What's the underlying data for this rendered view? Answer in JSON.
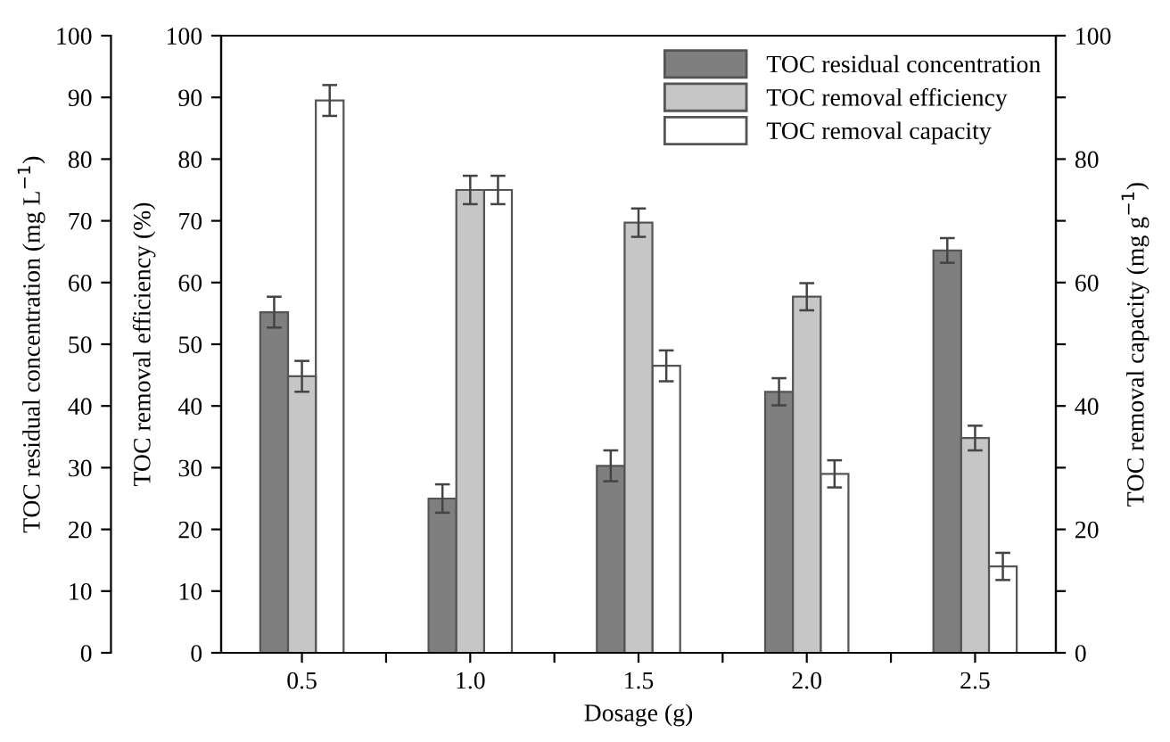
{
  "chart_data": {
    "type": "bar",
    "xlabel": "Dosage (g)",
    "ylabel": "TOC removal efficiency (%)",
    "y2label": "TOC removal capacity (mg g$^{−1}$)",
    "y3label": "TOC residual concentration (mg L$^{−1}$)",
    "x": [
      0.5,
      1.0,
      1.5,
      2.0,
      2.5
    ],
    "xlim": [
      0.26,
      2.74
    ],
    "xticks": [
      {
        "value": 0.5,
        "label": "0.5"
      },
      {
        "value": 0.75,
        "label": null
      },
      {
        "value": 1.0,
        "label": "1.0"
      },
      {
        "value": 1.25,
        "label": null
      },
      {
        "value": 1.5,
        "label": "1.5"
      },
      {
        "value": 1.75,
        "label": null
      },
      {
        "value": 2.0,
        "label": "2.0"
      },
      {
        "value": 2.25,
        "label": null
      },
      {
        "value": 2.5,
        "label": "2.5"
      }
    ],
    "ylim": [
      0,
      100
    ],
    "yticks": [
      0,
      10,
      20,
      30,
      40,
      50,
      60,
      70,
      80,
      90,
      100
    ],
    "y3lim": [
      0,
      100
    ],
    "y3ticks": [
      0,
      10,
      20,
      30,
      40,
      50,
      60,
      70,
      80,
      90,
      100
    ],
    "y2lim": [
      0,
      100
    ],
    "y2ticks": [
      0,
      {
        "value": 10,
        "label": null
      },
      20,
      {
        "value": 30,
        "label": null
      },
      40,
      {
        "value": 50,
        "label": null
      },
      60,
      {
        "value": 70,
        "label": null
      },
      80,
      {
        "value": 90,
        "label": null
      },
      100
    ],
    "series": [
      {
        "name": "TOC residual concentration",
        "color": "#7f7f7f",
        "axis": "y3",
        "values": [
          55.2,
          25.0,
          30.3,
          42.3,
          65.2
        ],
        "errors": [
          2.5,
          2.3,
          2.5,
          2.2,
          2.0
        ]
      },
      {
        "name": "TOC removal efficiency",
        "color": "#c6c6c6",
        "axis": "y",
        "values": [
          44.8,
          75.0,
          69.7,
          57.7,
          34.8
        ],
        "errors": [
          2.5,
          2.3,
          2.3,
          2.2,
          2.0
        ]
      },
      {
        "name": "TOC removal capacity",
        "color": "#ffffff",
        "axis": "y2",
        "values": [
          89.5,
          75.0,
          46.5,
          29.0,
          14.0
        ],
        "errors": [
          2.5,
          2.3,
          2.5,
          2.2,
          2.2
        ]
      }
    ],
    "legend": "top right",
    "grid": false
  }
}
